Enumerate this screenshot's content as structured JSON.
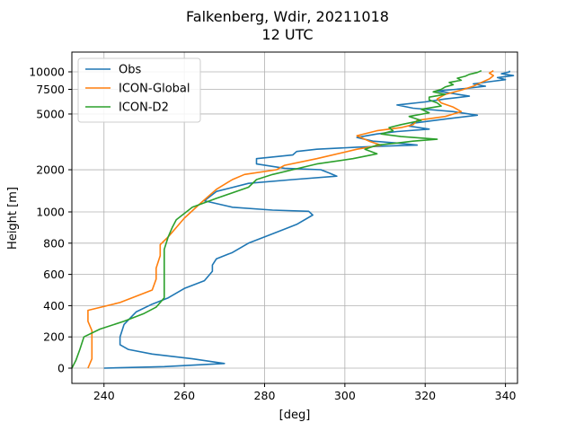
{
  "chart_data": {
    "type": "line",
    "title": "Falkenberg, Wdir, 20211018",
    "subtitle": "12 UTC",
    "xlabel": "[deg]",
    "ylabel": "Height [m]",
    "xlim": [
      232,
      343
    ],
    "x_ticks": [
      240,
      260,
      280,
      300,
      320,
      340
    ],
    "y_scale": "piecewise: linear below 1000 m, logarithmic above",
    "y_ticks": [
      {
        "label": "0",
        "value": 0
      },
      {
        "label": "200",
        "value": 200
      },
      {
        "label": "400",
        "value": 400
      },
      {
        "label": "600",
        "value": 600
      },
      {
        "label": "800",
        "value": 800
      },
      {
        "label": "1000",
        "value": 1000
      },
      {
        "label": "2000",
        "value": 2000
      },
      {
        "label": "5000",
        "value": 5000
      },
      {
        "label": "7500",
        "value": 7500
      },
      {
        "label": "10000",
        "value": 10000
      }
    ],
    "grid": true,
    "legend_position": "top-left",
    "series": [
      {
        "name": "Obs",
        "color": "#1f77b4",
        "points": [
          [
            240,
            0
          ],
          [
            255,
            10
          ],
          [
            270,
            30
          ],
          [
            262,
            60
          ],
          [
            252,
            90
          ],
          [
            246,
            120
          ],
          [
            244,
            150
          ],
          [
            244,
            200
          ],
          [
            245,
            280
          ],
          [
            248,
            360
          ],
          [
            252,
            410
          ],
          [
            256,
            450
          ],
          [
            260,
            510
          ],
          [
            265,
            560
          ],
          [
            267,
            620
          ],
          [
            267,
            660
          ],
          [
            268,
            700
          ],
          [
            272,
            740
          ],
          [
            276,
            800
          ],
          [
            282,
            860
          ],
          [
            288,
            920
          ],
          [
            292,
            980
          ],
          [
            291,
            1010
          ],
          [
            282,
            1030
          ],
          [
            272,
            1080
          ],
          [
            265,
            1200
          ],
          [
            268,
            1400
          ],
          [
            276,
            1600
          ],
          [
            287,
            1700
          ],
          [
            298,
            1800
          ],
          [
            296,
            1900
          ],
          [
            294,
            2000
          ],
          [
            285,
            2050
          ],
          [
            278,
            2200
          ],
          [
            278,
            2400
          ],
          [
            287,
            2550
          ],
          [
            288,
            2700
          ],
          [
            293,
            2800
          ],
          [
            303,
            2900
          ],
          [
            310,
            2950
          ],
          [
            318,
            3000
          ],
          [
            313,
            3100
          ],
          [
            307,
            3200
          ],
          [
            303,
            3400
          ],
          [
            308,
            3600
          ],
          [
            313,
            3750
          ],
          [
            321,
            3900
          ],
          [
            316,
            4100
          ],
          [
            317,
            4300
          ],
          [
            325,
            4600
          ],
          [
            333,
            4900
          ],
          [
            327,
            5200
          ],
          [
            317,
            5500
          ],
          [
            313,
            5800
          ],
          [
            320,
            6100
          ],
          [
            325,
            6400
          ],
          [
            331,
            6700
          ],
          [
            327,
            7000
          ],
          [
            323,
            7300
          ],
          [
            330,
            7600
          ],
          [
            335,
            7900
          ],
          [
            332,
            8200
          ],
          [
            336,
            8500
          ],
          [
            340,
            8800
          ],
          [
            338,
            9100
          ],
          [
            342,
            9400
          ],
          [
            339,
            9700
          ],
          [
            341,
            10000
          ],
          [
            341,
            10200
          ]
        ]
      },
      {
        "name": "ICON-Global",
        "color": "#ff7f0e",
        "points": [
          [
            236,
            0
          ],
          [
            237,
            60
          ],
          [
            237,
            120
          ],
          [
            237,
            180
          ],
          [
            237,
            240
          ],
          [
            236,
            300
          ],
          [
            236,
            370
          ],
          [
            244,
            420
          ],
          [
            252,
            500
          ],
          [
            253,
            570
          ],
          [
            253,
            640
          ],
          [
            254,
            720
          ],
          [
            254,
            790
          ],
          [
            256,
            840
          ],
          [
            258,
            900
          ],
          [
            260,
            960
          ],
          [
            264,
            1150
          ],
          [
            268,
            1450
          ],
          [
            272,
            1700
          ],
          [
            275,
            1850
          ],
          [
            283,
            2000
          ],
          [
            285,
            2150
          ],
          [
            293,
            2400
          ],
          [
            303,
            2800
          ],
          [
            309,
            3000
          ],
          [
            306,
            3200
          ],
          [
            303,
            3500
          ],
          [
            308,
            3800
          ],
          [
            314,
            4000
          ],
          [
            317,
            4200
          ],
          [
            318,
            4500
          ],
          [
            325,
            4800
          ],
          [
            329,
            5200
          ],
          [
            327,
            5600
          ],
          [
            324,
            6000
          ],
          [
            323,
            6400
          ],
          [
            325,
            6900
          ],
          [
            329,
            7400
          ],
          [
            332,
            7900
          ],
          [
            334,
            8400
          ],
          [
            336,
            8900
          ],
          [
            337,
            9400
          ],
          [
            336,
            9800
          ],
          [
            337,
            10200
          ]
        ]
      },
      {
        "name": "ICON-D2",
        "color": "#2ca02c",
        "points": [
          [
            232,
            0
          ],
          [
            233,
            50
          ],
          [
            234,
            120
          ],
          [
            235,
            200
          ],
          [
            239,
            250
          ],
          [
            245,
            300
          ],
          [
            250,
            350
          ],
          [
            253,
            390
          ],
          [
            255,
            450
          ],
          [
            255,
            520
          ],
          [
            255,
            600
          ],
          [
            255,
            680
          ],
          [
            255,
            760
          ],
          [
            256,
            840
          ],
          [
            257,
            900
          ],
          [
            258,
            950
          ],
          [
            262,
            1080
          ],
          [
            268,
            1250
          ],
          [
            276,
            1500
          ],
          [
            278,
            1700
          ],
          [
            282,
            1850
          ],
          [
            287,
            2000
          ],
          [
            293,
            2200
          ],
          [
            302,
            2400
          ],
          [
            308,
            2600
          ],
          [
            305,
            2800
          ],
          [
            308,
            3000
          ],
          [
            313,
            3100
          ],
          [
            317,
            3200
          ],
          [
            323,
            3300
          ],
          [
            314,
            3450
          ],
          [
            309,
            3600
          ],
          [
            312,
            3800
          ],
          [
            311,
            4000
          ],
          [
            314,
            4200
          ],
          [
            319,
            4500
          ],
          [
            316,
            4800
          ],
          [
            321,
            5100
          ],
          [
            319,
            5400
          ],
          [
            324,
            5700
          ],
          [
            323,
            6000
          ],
          [
            321,
            6300
          ],
          [
            321,
            6600
          ],
          [
            325,
            6900
          ],
          [
            322,
            7200
          ],
          [
            324,
            7500
          ],
          [
            325,
            7800
          ],
          [
            327,
            8100
          ],
          [
            326,
            8400
          ],
          [
            329,
            8700
          ],
          [
            328,
            9000
          ],
          [
            330,
            9300
          ],
          [
            331,
            9600
          ],
          [
            333,
            9900
          ],
          [
            334,
            10200
          ]
        ]
      }
    ]
  }
}
